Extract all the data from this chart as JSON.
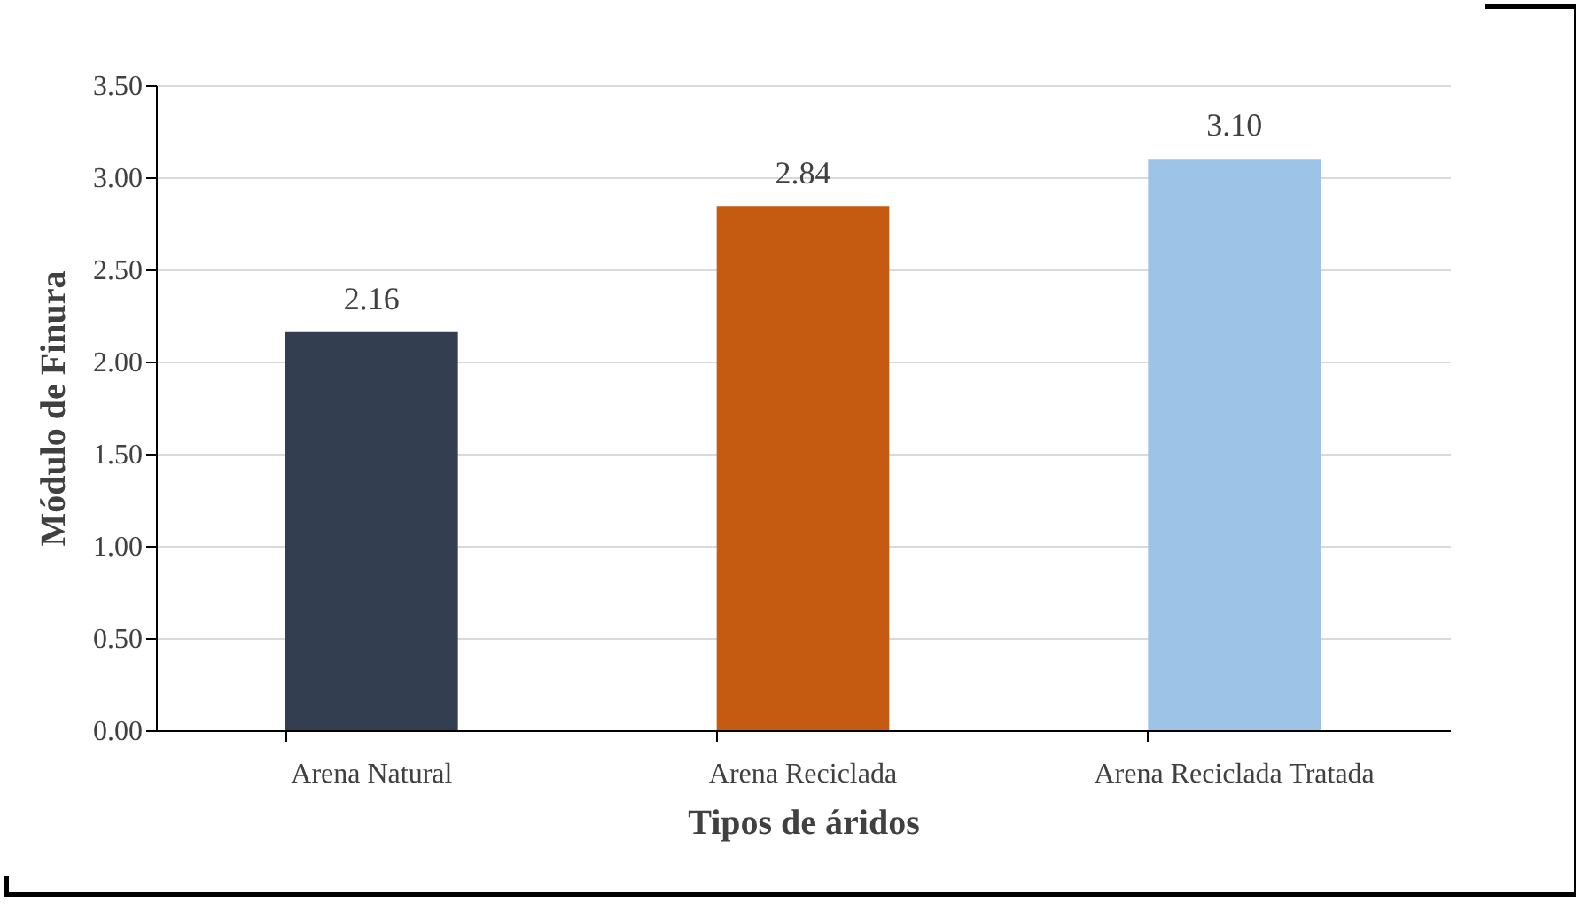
{
  "chart_data": {
    "type": "bar",
    "categories": [
      "Arena Natural",
      "Arena Reciclada",
      "Arena Reciclada Tratada"
    ],
    "values": [
      2.16,
      2.84,
      3.1
    ],
    "colors": [
      "#333f50",
      "#c55a11",
      "#9dc3e6"
    ],
    "value_labels": [
      "2.16",
      "2.84",
      "3.10"
    ],
    "xlabel": "Tipos de áridos",
    "ylabel": "Módulo de Finura",
    "ylim": [
      0,
      3.5
    ],
    "yticks": [
      {
        "value": 0,
        "label": "0.00"
      },
      {
        "value": 0.5,
        "label": "0.50"
      },
      {
        "value": 1,
        "label": "1.00"
      },
      {
        "value": 1.5,
        "label": "1.50"
      },
      {
        "value": 2,
        "label": "2.00"
      },
      {
        "value": 2.5,
        "label": "2.50"
      },
      {
        "value": 3,
        "label": "3.00"
      },
      {
        "value": 3.5,
        "label": "3.50"
      }
    ],
    "grid": true
  }
}
